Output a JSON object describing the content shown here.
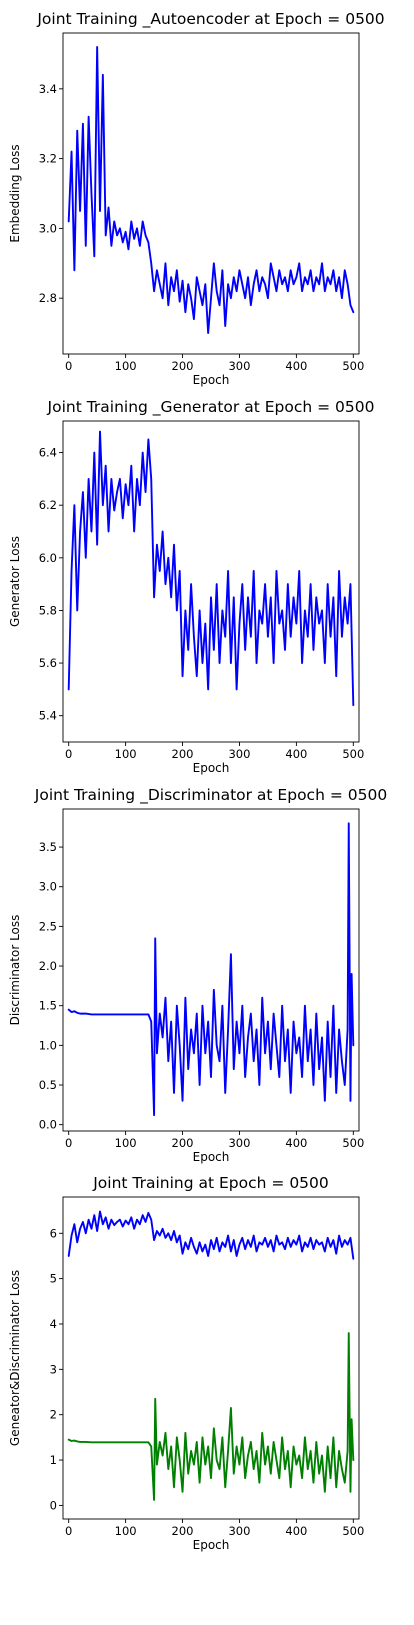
{
  "chart_data": [
    {
      "type": "line",
      "title": "Joint Training _Autoencoder at Epoch = 0500",
      "xlabel": "Epoch",
      "ylabel": "Embedding Loss",
      "xlim": [
        -10,
        510
      ],
      "ylim": [
        2.64,
        3.56
      ],
      "xticks": [
        0,
        100,
        200,
        300,
        400,
        500
      ],
      "yticks": [
        2.8,
        3.0,
        3.2,
        3.4
      ],
      "ytick_labels": [
        "2.8",
        "3.0",
        "3.2",
        "3.4"
      ],
      "grid": false,
      "series": [
        {
          "color": "#0000ff",
          "x": [
            0,
            5,
            10,
            15,
            20,
            25,
            30,
            35,
            40,
            45,
            50,
            55,
            60,
            65,
            70,
            75,
            80,
            85,
            90,
            95,
            100,
            105,
            110,
            115,
            120,
            125,
            130,
            135,
            140,
            145,
            150,
            155,
            160,
            165,
            170,
            175,
            180,
            185,
            190,
            195,
            200,
            205,
            210,
            215,
            220,
            225,
            230,
            235,
            240,
            245,
            250,
            255,
            260,
            265,
            270,
            275,
            280,
            285,
            290,
            295,
            300,
            305,
            310,
            315,
            320,
            325,
            330,
            335,
            340,
            345,
            350,
            355,
            360,
            365,
            370,
            375,
            380,
            385,
            390,
            395,
            400,
            405,
            410,
            415,
            420,
            425,
            430,
            435,
            440,
            445,
            450,
            455,
            460,
            465,
            470,
            475,
            480,
            485,
            490,
            495,
            500
          ],
          "values": [
            3.02,
            3.22,
            2.88,
            3.28,
            3.05,
            3.3,
            2.95,
            3.32,
            3.1,
            2.92,
            3.52,
            3.05,
            3.44,
            2.98,
            3.06,
            2.95,
            3.02,
            2.98,
            3.0,
            2.96,
            2.99,
            2.94,
            3.02,
            2.97,
            3.0,
            2.95,
            3.02,
            2.98,
            2.96,
            2.9,
            2.82,
            2.88,
            2.84,
            2.8,
            2.9,
            2.78,
            2.86,
            2.82,
            2.88,
            2.79,
            2.85,
            2.76,
            2.84,
            2.8,
            2.74,
            2.86,
            2.82,
            2.78,
            2.84,
            2.7,
            2.8,
            2.9,
            2.82,
            2.78,
            2.88,
            2.72,
            2.84,
            2.8,
            2.86,
            2.82,
            2.88,
            2.84,
            2.8,
            2.86,
            2.78,
            2.84,
            2.88,
            2.82,
            2.86,
            2.84,
            2.8,
            2.9,
            2.86,
            2.82,
            2.88,
            2.84,
            2.86,
            2.82,
            2.88,
            2.84,
            2.86,
            2.9,
            2.82,
            2.86,
            2.84,
            2.88,
            2.82,
            2.86,
            2.84,
            2.9,
            2.82,
            2.86,
            2.84,
            2.88,
            2.82,
            2.86,
            2.8,
            2.88,
            2.84,
            2.78,
            2.76
          ]
        }
      ]
    },
    {
      "type": "line",
      "title": "Joint Training _Generator at Epoch = 0500",
      "xlabel": "Epoch",
      "ylabel": "Generator Loss",
      "xlim": [
        -10,
        510
      ],
      "ylim": [
        5.3,
        6.52
      ],
      "xticks": [
        0,
        100,
        200,
        300,
        400,
        500
      ],
      "yticks": [
        5.4,
        5.6,
        5.8,
        6.0,
        6.2,
        6.4
      ],
      "ytick_labels": [
        "5.4",
        "5.6",
        "5.8",
        "6.0",
        "6.2",
        "6.4"
      ],
      "grid": false,
      "series": [
        {
          "color": "#0000ff",
          "x": [
            0,
            5,
            10,
            15,
            20,
            25,
            30,
            35,
            40,
            45,
            50,
            55,
            60,
            65,
            70,
            75,
            80,
            85,
            90,
            95,
            100,
            105,
            110,
            115,
            120,
            125,
            130,
            135,
            140,
            145,
            150,
            155,
            160,
            165,
            170,
            175,
            180,
            185,
            190,
            195,
            200,
            205,
            210,
            215,
            220,
            225,
            230,
            235,
            240,
            245,
            250,
            255,
            260,
            265,
            270,
            275,
            280,
            285,
            290,
            295,
            300,
            305,
            310,
            315,
            320,
            325,
            330,
            335,
            340,
            345,
            350,
            355,
            360,
            365,
            370,
            375,
            380,
            385,
            390,
            395,
            400,
            405,
            410,
            415,
            420,
            425,
            430,
            435,
            440,
            445,
            450,
            455,
            460,
            465,
            470,
            475,
            480,
            485,
            490,
            495,
            500
          ],
          "values": [
            5.5,
            5.95,
            6.2,
            5.8,
            6.1,
            6.25,
            6.0,
            6.3,
            6.1,
            6.4,
            6.05,
            6.48,
            6.2,
            6.35,
            6.1,
            6.3,
            6.18,
            6.25,
            6.3,
            6.15,
            6.28,
            6.2,
            6.35,
            6.1,
            6.3,
            6.2,
            6.4,
            6.25,
            6.45,
            6.3,
            5.85,
            6.05,
            5.95,
            6.1,
            5.9,
            6.0,
            5.85,
            6.05,
            5.8,
            5.95,
            5.55,
            5.8,
            5.65,
            5.9,
            5.7,
            5.55,
            5.8,
            5.6,
            5.75,
            5.5,
            5.85,
            5.65,
            5.9,
            5.6,
            5.8,
            5.7,
            5.95,
            5.6,
            5.85,
            5.5,
            5.75,
            5.9,
            5.65,
            5.85,
            5.7,
            5.95,
            5.6,
            5.8,
            5.75,
            5.9,
            5.7,
            5.85,
            5.6,
            5.95,
            5.75,
            5.8,
            5.65,
            5.9,
            5.7,
            5.85,
            5.75,
            5.95,
            5.6,
            5.8,
            5.7,
            5.9,
            5.65,
            5.85,
            5.75,
            5.8,
            5.6,
            5.9,
            5.7,
            5.85,
            5.55,
            5.95,
            5.7,
            5.85,
            5.75,
            5.9,
            5.44
          ]
        }
      ]
    },
    {
      "type": "line",
      "title": "Joint Training _Discriminator at Epoch = 0500",
      "xlabel": "Epoch",
      "ylabel": "Discriminator Loss",
      "xlim": [
        -10,
        510
      ],
      "ylim": [
        -0.08,
        3.98
      ],
      "xticks": [
        0,
        100,
        200,
        300,
        400,
        500
      ],
      "yticks": [
        0.0,
        0.5,
        1.0,
        1.5,
        2.0,
        2.5,
        3.0,
        3.5
      ],
      "ytick_labels": [
        "0.0",
        "0.5",
        "1.0",
        "1.5",
        "2.0",
        "2.5",
        "3.0",
        "3.5"
      ],
      "grid": false,
      "series": [
        {
          "color": "#0000ff",
          "x": [
            0,
            5,
            10,
            15,
            20,
            30,
            40,
            60,
            80,
            100,
            120,
            140,
            145,
            150,
            152,
            155,
            160,
            165,
            170,
            175,
            180,
            185,
            190,
            195,
            200,
            205,
            210,
            215,
            220,
            225,
            230,
            235,
            240,
            245,
            250,
            255,
            260,
            265,
            270,
            275,
            280,
            285,
            290,
            295,
            300,
            305,
            310,
            315,
            320,
            325,
            330,
            335,
            340,
            345,
            350,
            355,
            360,
            365,
            370,
            375,
            380,
            385,
            390,
            395,
            400,
            405,
            410,
            415,
            420,
            425,
            430,
            435,
            440,
            445,
            450,
            455,
            460,
            465,
            470,
            475,
            480,
            485,
            490,
            492,
            495,
            497,
            500
          ],
          "values": [
            1.45,
            1.42,
            1.43,
            1.41,
            1.4,
            1.4,
            1.39,
            1.39,
            1.39,
            1.39,
            1.39,
            1.39,
            1.3,
            0.12,
            2.35,
            0.9,
            1.4,
            1.1,
            1.6,
            0.8,
            1.3,
            0.4,
            1.5,
            1.0,
            0.3,
            1.6,
            0.7,
            1.2,
            0.9,
            1.4,
            0.5,
            1.5,
            0.9,
            1.3,
            0.6,
            1.7,
            1.0,
            0.8,
            1.5,
            0.4,
            1.2,
            2.15,
            0.7,
            1.3,
            0.9,
            1.5,
            0.6,
            1.1,
            1.4,
            0.8,
            1.2,
            0.5,
            1.6,
            0.9,
            1.3,
            0.7,
            1.4,
            1.0,
            0.6,
            1.5,
            0.8,
            1.2,
            0.4,
            1.3,
            0.9,
            1.1,
            0.6,
            1.5,
            0.8,
            1.2,
            0.5,
            1.4,
            0.7,
            1.1,
            0.3,
            1.3,
            0.6,
            1.5,
            0.4,
            1.2,
            0.8,
            0.5,
            1.2,
            3.8,
            0.3,
            1.9,
            1.0
          ]
        }
      ]
    },
    {
      "type": "line",
      "title": "Joint Training at Epoch = 0500",
      "xlabel": "Epoch",
      "ylabel": "Geneator&Discriminator Loss",
      "xlim": [
        -10,
        510
      ],
      "ylim": [
        -0.3,
        6.8
      ],
      "xticks": [
        0,
        100,
        200,
        300,
        400,
        500
      ],
      "yticks": [
        0,
        1,
        2,
        3,
        4,
        5,
        6
      ],
      "ytick_labels": [
        "0",
        "1",
        "2",
        "3",
        "4",
        "5",
        "6"
      ],
      "grid": false,
      "series": [
        {
          "color": "#0000ff",
          "x": [
            0,
            5,
            10,
            15,
            20,
            25,
            30,
            35,
            40,
            45,
            50,
            55,
            60,
            65,
            70,
            75,
            80,
            85,
            90,
            95,
            100,
            105,
            110,
            115,
            120,
            125,
            130,
            135,
            140,
            145,
            150,
            155,
            160,
            165,
            170,
            175,
            180,
            185,
            190,
            195,
            200,
            205,
            210,
            215,
            220,
            225,
            230,
            235,
            240,
            245,
            250,
            255,
            260,
            265,
            270,
            275,
            280,
            285,
            290,
            295,
            300,
            305,
            310,
            315,
            320,
            325,
            330,
            335,
            340,
            345,
            350,
            355,
            360,
            365,
            370,
            375,
            380,
            385,
            390,
            395,
            400,
            405,
            410,
            415,
            420,
            425,
            430,
            435,
            440,
            445,
            450,
            455,
            460,
            465,
            470,
            475,
            480,
            485,
            490,
            495,
            500
          ],
          "values": [
            5.5,
            5.95,
            6.2,
            5.8,
            6.1,
            6.25,
            6.0,
            6.3,
            6.1,
            6.4,
            6.05,
            6.48,
            6.2,
            6.35,
            6.1,
            6.3,
            6.18,
            6.25,
            6.3,
            6.15,
            6.28,
            6.2,
            6.35,
            6.1,
            6.3,
            6.2,
            6.4,
            6.25,
            6.45,
            6.3,
            5.85,
            6.05,
            5.95,
            6.1,
            5.9,
            6.0,
            5.85,
            6.05,
            5.8,
            5.95,
            5.55,
            5.8,
            5.65,
            5.9,
            5.7,
            5.55,
            5.8,
            5.6,
            5.75,
            5.5,
            5.85,
            5.65,
            5.9,
            5.6,
            5.8,
            5.7,
            5.95,
            5.6,
            5.85,
            5.5,
            5.75,
            5.9,
            5.65,
            5.85,
            5.7,
            5.95,
            5.6,
            5.8,
            5.75,
            5.9,
            5.7,
            5.85,
            5.6,
            5.95,
            5.75,
            5.8,
            5.65,
            5.9,
            5.7,
            5.85,
            5.75,
            5.95,
            5.6,
            5.8,
            5.7,
            5.9,
            5.65,
            5.85,
            5.75,
            5.8,
            5.6,
            5.9,
            5.7,
            5.85,
            5.55,
            5.95,
            5.7,
            5.85,
            5.75,
            5.9,
            5.44
          ]
        },
        {
          "color": "#008000",
          "x": [
            0,
            5,
            10,
            15,
            20,
            30,
            40,
            60,
            80,
            100,
            120,
            140,
            145,
            150,
            152,
            155,
            160,
            165,
            170,
            175,
            180,
            185,
            190,
            195,
            200,
            205,
            210,
            215,
            220,
            225,
            230,
            235,
            240,
            245,
            250,
            255,
            260,
            265,
            270,
            275,
            280,
            285,
            290,
            295,
            300,
            305,
            310,
            315,
            320,
            325,
            330,
            335,
            340,
            345,
            350,
            355,
            360,
            365,
            370,
            375,
            380,
            385,
            390,
            395,
            400,
            405,
            410,
            415,
            420,
            425,
            430,
            435,
            440,
            445,
            450,
            455,
            460,
            465,
            470,
            475,
            480,
            485,
            490,
            492,
            495,
            497,
            500
          ],
          "values": [
            1.45,
            1.42,
            1.43,
            1.41,
            1.4,
            1.4,
            1.39,
            1.39,
            1.39,
            1.39,
            1.39,
            1.39,
            1.3,
            0.12,
            2.35,
            0.9,
            1.4,
            1.1,
            1.6,
            0.8,
            1.3,
            0.4,
            1.5,
            1.0,
            0.3,
            1.6,
            0.7,
            1.2,
            0.9,
            1.4,
            0.5,
            1.5,
            0.9,
            1.3,
            0.6,
            1.7,
            1.0,
            0.8,
            1.5,
            0.4,
            1.2,
            2.15,
            0.7,
            1.3,
            0.9,
            1.5,
            0.6,
            1.1,
            1.4,
            0.8,
            1.2,
            0.5,
            1.6,
            0.9,
            1.3,
            0.7,
            1.4,
            1.0,
            0.6,
            1.5,
            0.8,
            1.2,
            0.4,
            1.3,
            0.9,
            1.1,
            0.6,
            1.5,
            0.8,
            1.2,
            0.5,
            1.4,
            0.7,
            1.1,
            0.3,
            1.3,
            0.6,
            1.5,
            0.4,
            1.2,
            0.8,
            0.5,
            1.2,
            3.8,
            0.3,
            1.9,
            1.0
          ]
        }
      ]
    }
  ]
}
